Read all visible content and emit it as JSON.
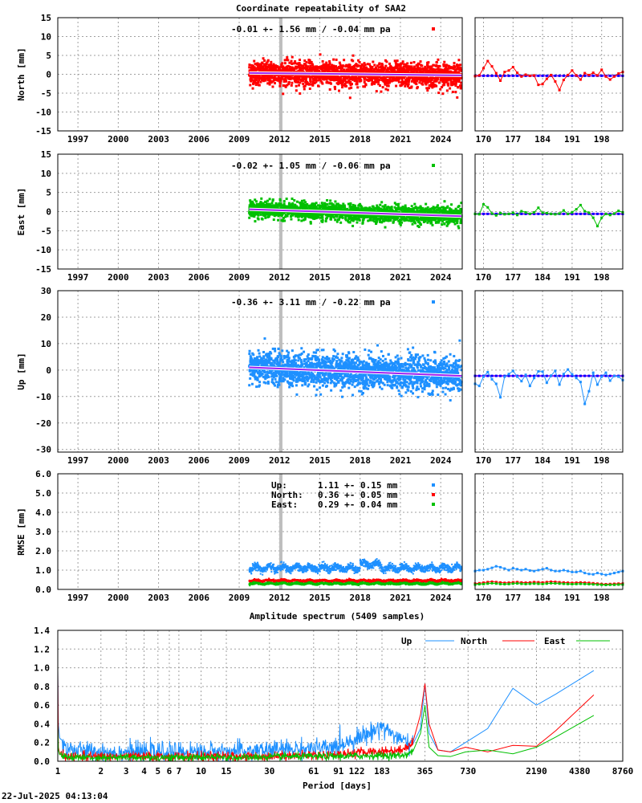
{
  "figure": {
    "title": "Coordinate repeatability of SAA2",
    "timestamp": "22-Jul-2025 04:13:04"
  },
  "colors": {
    "north": "#ff0000",
    "east": "#00c000",
    "up": "#1e90ff",
    "trend": "#a020f0",
    "event": "#bebebe"
  },
  "chart_data": [
    {
      "id": "north",
      "type": "scatter",
      "ylabel": "North [mm]",
      "annotation": "-0.01 +- 1.56 mm / -0.04 mm pa",
      "ylim": [
        -15,
        15
      ],
      "yticks": [
        -15,
        -10,
        -5,
        0,
        5,
        10,
        15
      ],
      "xlim": [
        1995.5,
        2025.6
      ],
      "xticks": [
        1997,
        2000,
        2003,
        2006,
        2009,
        2012,
        2015,
        2018,
        2021,
        2024
      ],
      "data_range": [
        2009.75,
        2025.55
      ],
      "event_line": 2012.1,
      "summary": {
        "mean": -0.01,
        "std": 1.56,
        "rate": -0.04,
        "units": "mm"
      },
      "trend": {
        "x": [
          2009.75,
          2025.55
        ],
        "y": [
          0.35,
          -0.3
        ]
      },
      "zoom": {
        "xlim": [
          168,
          203
        ],
        "xticks": [
          170,
          177,
          184,
          191,
          198
        ],
        "trend": -0.4,
        "values": [
          -0.5,
          -0.3,
          1.6,
          3.5,
          2.1,
          0.3,
          -1.7,
          0.6,
          1.0,
          1.9,
          0.4,
          -0.6,
          -0.1,
          -0.4,
          -0.3,
          -2.8,
          -2.6,
          -1.2,
          -0.2,
          -1.9,
          -4.2,
          -1.5,
          -0.2,
          1.0,
          -0.3,
          -1.4,
          0.3,
          -0.2,
          0.4,
          -0.3,
          1.2,
          -0.6,
          -1.4,
          -0.6,
          0.2,
          0.6
        ]
      }
    },
    {
      "id": "east",
      "type": "scatter",
      "ylabel": "East [mm]",
      "annotation": "-0.02 +- 1.05 mm / -0.06 mm pa",
      "ylim": [
        -15,
        15
      ],
      "yticks": [
        -15,
        -10,
        -5,
        0,
        5,
        10,
        15
      ],
      "xlim": [
        1995.5,
        2025.6
      ],
      "xticks": [
        1997,
        2000,
        2003,
        2006,
        2009,
        2012,
        2015,
        2018,
        2021,
        2024
      ],
      "data_range": [
        2009.75,
        2025.55
      ],
      "event_line": 2012.1,
      "summary": {
        "mean": -0.02,
        "std": 1.05,
        "rate": -0.06,
        "units": "mm"
      },
      "trend": {
        "x": [
          2009.75,
          2025.55
        ],
        "y": [
          0.6,
          -1.2
        ]
      },
      "zoom": {
        "xlim": [
          168,
          203
        ],
        "xticks": [
          170,
          177,
          184,
          191,
          198
        ],
        "trend": -0.6,
        "values": [
          -0.6,
          -0.7,
          1.9,
          1.1,
          -0.5,
          -1.0,
          -0.4,
          -0.7,
          -0.6,
          -0.3,
          -0.9,
          0.1,
          -0.2,
          -0.6,
          -0.2,
          1.0,
          -0.3,
          -0.4,
          -0.6,
          -0.7,
          -0.5,
          0.3,
          -0.6,
          -0.2,
          0.6,
          1.7,
          0.1,
          -0.3,
          -1.6,
          -3.8,
          -1.6,
          -0.6,
          -0.9,
          -0.5,
          0.2,
          -0.2
        ]
      }
    },
    {
      "id": "up",
      "type": "scatter",
      "ylabel": "Up [mm]",
      "annotation": "-0.36 +- 3.11 mm / -0.22 mm pa",
      "ylim": [
        -31,
        30
      ],
      "yticks": [
        -30,
        -20,
        -10,
        0,
        10,
        20,
        30
      ],
      "xlim": [
        1995.5,
        2025.6
      ],
      "xticks": [
        1997,
        2000,
        2003,
        2006,
        2009,
        2012,
        2015,
        2018,
        2021,
        2024
      ],
      "data_range": [
        2009.75,
        2025.55
      ],
      "event_line": 2012.1,
      "summary": {
        "mean": -0.36,
        "std": 3.11,
        "rate": -0.22,
        "units": "mm"
      },
      "trend": {
        "x": [
          2009.75,
          2025.55
        ],
        "y": [
          1.0,
          -2.2
        ]
      },
      "zoom": {
        "xlim": [
          168,
          203
        ],
        "xticks": [
          170,
          177,
          184,
          191,
          198
        ],
        "trend": -2.2,
        "values": [
          -5.2,
          -6.0,
          -2.5,
          -0.8,
          -3.5,
          -5.2,
          -10.3,
          -2.5,
          -1.5,
          -0.3,
          -2.5,
          -4.2,
          -1.8,
          -6.0,
          -3.0,
          -0.5,
          -0.6,
          -4.8,
          -2.1,
          -0.3,
          -5.5,
          -1.5,
          0.2,
          -1.6,
          -3.0,
          -4.5,
          -12.8,
          -8.0,
          -1.0,
          -5.5,
          -2.5,
          -1.0,
          -4.0,
          -2.2,
          -2.5,
          -3.8
        ]
      }
    },
    {
      "id": "rmse",
      "type": "scatter",
      "ylabel": "RMSE [mm]",
      "ylim": [
        0,
        6
      ],
      "yticks": [
        0.0,
        1.0,
        2.0,
        3.0,
        4.0,
        5.0,
        6.0
      ],
      "xlim": [
        1995.5,
        2025.6
      ],
      "xticks": [
        1997,
        2000,
        2003,
        2006,
        2009,
        2012,
        2015,
        2018,
        2021,
        2024
      ],
      "data_range": [
        2009.75,
        2025.55
      ],
      "event_line": 2012.1,
      "legend": [
        {
          "name": "Up:",
          "text": "1.11 +- 0.15 mm",
          "color": "up",
          "mean": 1.11,
          "std": 0.15
        },
        {
          "name": "North:",
          "text": "0.36 +- 0.05 mm",
          "color": "north",
          "mean": 0.36,
          "std": 0.05
        },
        {
          "name": "East:",
          "text": "0.29 +- 0.04 mm",
          "color": "east",
          "mean": 0.29,
          "std": 0.04
        }
      ],
      "zoom": {
        "xlim": [
          168,
          203
        ],
        "xticks": [
          170,
          177,
          184,
          191,
          198
        ],
        "up": [
          0.95,
          1.0,
          1.0,
          1.05,
          1.12,
          1.2,
          1.15,
          1.08,
          1.0,
          1.1,
          1.05,
          1.0,
          1.05,
          0.98,
          0.95,
          1.0,
          1.05,
          1.1,
          1.0,
          0.95,
          0.95,
          1.0,
          0.95,
          0.9,
          0.9,
          0.95,
          0.85,
          0.8,
          0.78,
          0.85,
          0.8,
          0.75,
          0.8,
          0.85,
          0.9,
          0.95
        ],
        "north": [
          0.3,
          0.32,
          0.35,
          0.38,
          0.4,
          0.38,
          0.36,
          0.34,
          0.35,
          0.37,
          0.38,
          0.36,
          0.35,
          0.36,
          0.38,
          0.37,
          0.36,
          0.38,
          0.4,
          0.39,
          0.37,
          0.36,
          0.35,
          0.34,
          0.35,
          0.36,
          0.35,
          0.34,
          0.32,
          0.3,
          0.28,
          0.27,
          0.28,
          0.29,
          0.3,
          0.3
        ],
        "east": [
          0.25,
          0.27,
          0.28,
          0.3,
          0.32,
          0.3,
          0.28,
          0.27,
          0.28,
          0.3,
          0.31,
          0.29,
          0.28,
          0.29,
          0.3,
          0.29,
          0.28,
          0.3,
          0.32,
          0.31,
          0.3,
          0.29,
          0.28,
          0.27,
          0.28,
          0.29,
          0.28,
          0.27,
          0.26,
          0.25,
          0.24,
          0.23,
          0.24,
          0.24,
          0.25,
          0.25
        ]
      }
    },
    {
      "id": "spectrum",
      "type": "line",
      "title": "Amplitude spectrum (5409 samples)",
      "xlabel": "Period [days]",
      "xscale": "log",
      "xlim": [
        1,
        8760
      ],
      "xticks": [
        1,
        2,
        3,
        4,
        5,
        6,
        7,
        10,
        15,
        30,
        61,
        91,
        122,
        183,
        365,
        730,
        2190,
        4380,
        8760
      ],
      "ylim": [
        0,
        1.4
      ],
      "yticks": [
        0.0,
        0.2,
        0.4,
        0.6,
        0.8,
        1.0,
        1.2,
        1.4
      ],
      "legend_position": "top-right",
      "series": [
        {
          "name": "Up",
          "color": "up",
          "x": [
            1.0,
            1.01,
            1.03,
            1.1,
            1.3,
            2,
            5,
            10,
            20,
            40,
            80,
            150,
            183,
            250,
            300,
            340,
            365,
            390,
            450,
            550,
            700,
            1000,
            1500,
            2190,
            3000,
            5500
          ],
          "y": [
            0.97,
            0.4,
            0.25,
            0.16,
            0.12,
            0.1,
            0.1,
            0.1,
            0.11,
            0.13,
            0.14,
            0.3,
            0.38,
            0.22,
            0.18,
            0.35,
            0.83,
            0.3,
            0.12,
            0.1,
            0.2,
            0.35,
            0.78,
            0.6,
            0.72,
            0.97
          ]
        },
        {
          "name": "North",
          "color": "north",
          "x": [
            1.0,
            1.01,
            1.03,
            1.1,
            1.3,
            2,
            5,
            10,
            20,
            40,
            80,
            150,
            250,
            300,
            340,
            365,
            390,
            450,
            550,
            700,
            1000,
            1500,
            2190,
            3000,
            5500
          ],
          "y": [
            0.97,
            0.15,
            0.08,
            0.06,
            0.05,
            0.05,
            0.05,
            0.05,
            0.05,
            0.06,
            0.07,
            0.1,
            0.12,
            0.2,
            0.5,
            0.83,
            0.4,
            0.12,
            0.1,
            0.15,
            0.1,
            0.17,
            0.16,
            0.33,
            0.71
          ]
        },
        {
          "name": "East",
          "color": "east",
          "x": [
            1.0,
            1.01,
            1.03,
            1.1,
            1.3,
            2,
            5,
            10,
            20,
            40,
            80,
            150,
            250,
            300,
            340,
            365,
            390,
            450,
            550,
            700,
            1000,
            1500,
            2190,
            3000,
            5500
          ],
          "y": [
            0.4,
            0.12,
            0.07,
            0.05,
            0.04,
            0.04,
            0.04,
            0.04,
            0.04,
            0.05,
            0.05,
            0.06,
            0.06,
            0.1,
            0.3,
            0.6,
            0.15,
            0.06,
            0.05,
            0.1,
            0.12,
            0.08,
            0.15,
            0.26,
            0.49
          ]
        }
      ]
    }
  ]
}
